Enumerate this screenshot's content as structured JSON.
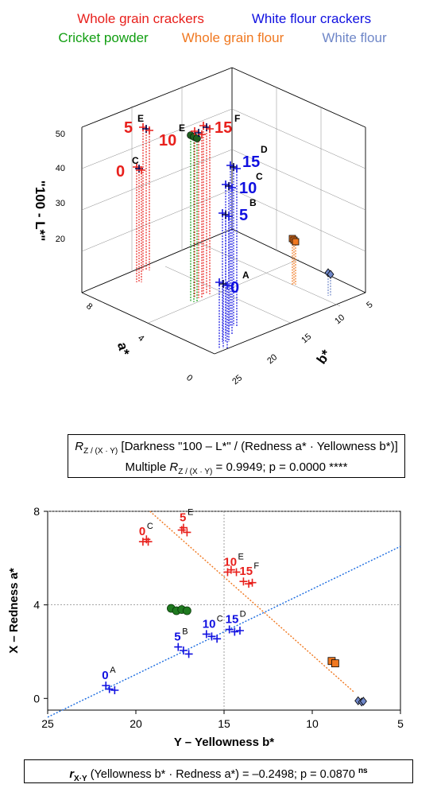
{
  "legend": [
    {
      "label": "Whole grain crackers",
      "color": "#e8201c"
    },
    {
      "label": "White flour crackers",
      "color": "#1010e0"
    },
    {
      "label": "Cricket powder",
      "color": "#119e11"
    },
    {
      "label": "Whole grain flour",
      "color": "#f07820"
    },
    {
      "label": "White flour",
      "color": "#6f87c8"
    }
  ],
  "top_chart": {
    "type": "scatter3d",
    "zlabel": "\"100 - L*\"",
    "xlabel": "a*",
    "ylabel": "b*",
    "z_ticks": [
      "50",
      "40",
      "30",
      "20"
    ],
    "a_ticks": [
      "8",
      "4",
      "0"
    ],
    "b_ticks": [
      "5",
      "10",
      "15",
      "20",
      "25"
    ],
    "point_labels": [
      {
        "text": "5",
        "color": "#e8201c"
      },
      {
        "text": "E",
        "color": "#000000"
      },
      {
        "text": "10",
        "color": "#e8201c"
      },
      {
        "text": "E",
        "color": "#000000"
      },
      {
        "text": "15",
        "color": "#e8201c"
      },
      {
        "text": "F",
        "color": "#000000"
      },
      {
        "text": "0",
        "color": "#e8201c"
      },
      {
        "text": "C",
        "color": "#000000"
      },
      {
        "text": "15",
        "color": "#1010e0"
      },
      {
        "text": "D",
        "color": "#000000"
      },
      {
        "text": "10",
        "color": "#1010e0"
      },
      {
        "text": "C",
        "color": "#000000"
      },
      {
        "text": "5",
        "color": "#1010e0"
      },
      {
        "text": "B",
        "color": "#000000"
      },
      {
        "text": "0",
        "color": "#1010e0"
      },
      {
        "text": "A",
        "color": "#000000"
      }
    ]
  },
  "model_box": {
    "line1_R": "R",
    "line1_sub": "Z / (X · Y)",
    "line1_text": " [Darkness \"100 – L*\" / (Redness a* · Yellowness b*)]",
    "line2_prefix": "Multiple ",
    "line2_R": "R",
    "line2_sub": "Z / (X · Y)",
    "line2_suffix": " = 0.9949; p = 0.0000 ****"
  },
  "chart_data": {
    "type": "scatter",
    "xlabel": "Y – Yellowness b*",
    "ylabel": "X – Redness a*",
    "xlim": [
      25,
      5
    ],
    "ylim": [
      -0.5,
      8
    ],
    "x_ticks": [
      25,
      20,
      15,
      10,
      5
    ],
    "y_ticks": [
      0,
      4,
      8
    ],
    "grid_x": [
      15
    ],
    "grid_y": [
      4,
      8
    ],
    "series": [
      {
        "name": "Whole grain crackers",
        "color": "#e8201c",
        "marker": "plus",
        "groups": [
          {
            "label": "0",
            "letter": "C",
            "points": [
              [
                19.6,
                6.7
              ],
              [
                19.4,
                6.8
              ],
              [
                19.3,
                6.7
              ]
            ]
          },
          {
            "label": "5",
            "letter": "E",
            "points": [
              [
                17.3,
                7.3
              ],
              [
                17.1,
                7.1
              ],
              [
                17.4,
                7.2
              ]
            ]
          },
          {
            "label": "10",
            "letter": "E",
            "points": [
              [
                14.8,
                5.4
              ],
              [
                14.6,
                5.5
              ],
              [
                14.3,
                5.4
              ]
            ]
          },
          {
            "label": "15",
            "letter": "F",
            "points": [
              [
                13.9,
                5.0
              ],
              [
                13.6,
                4.9
              ],
              [
                13.4,
                4.95
              ]
            ]
          }
        ]
      },
      {
        "name": "White flour crackers",
        "color": "#1010e0",
        "marker": "plus",
        "groups": [
          {
            "label": "0",
            "letter": "A",
            "points": [
              [
                21.7,
                0.55
              ],
              [
                21.5,
                0.4
              ],
              [
                21.2,
                0.35
              ]
            ]
          },
          {
            "label": "5",
            "letter": "B",
            "points": [
              [
                17.6,
                2.2
              ],
              [
                17.3,
                2.05
              ],
              [
                17.0,
                1.9
              ]
            ]
          },
          {
            "label": "10",
            "letter": "C",
            "points": [
              [
                16.0,
                2.75
              ],
              [
                15.7,
                2.65
              ],
              [
                15.4,
                2.55
              ]
            ]
          },
          {
            "label": "15",
            "letter": "D",
            "points": [
              [
                14.7,
                2.95
              ],
              [
                14.4,
                2.85
              ],
              [
                14.1,
                2.9
              ]
            ]
          }
        ]
      },
      {
        "name": "Cricket powder",
        "color": "#119e11",
        "marker": "circle",
        "groups": [
          {
            "label": "",
            "letter": "",
            "points": [
              [
                18.0,
                3.85
              ],
              [
                17.7,
                3.75
              ],
              [
                17.4,
                3.8
              ],
              [
                17.1,
                3.75
              ]
            ]
          }
        ]
      },
      {
        "name": "Whole grain flour",
        "color": "#f07820",
        "marker": "square",
        "groups": [
          {
            "label": "",
            "letter": "",
            "points": [
              [
                8.9,
                1.6
              ],
              [
                8.7,
                1.5
              ]
            ]
          }
        ]
      },
      {
        "name": "White flour",
        "color": "#6f87c8",
        "marker": "diamond",
        "groups": [
          {
            "label": "",
            "letter": "",
            "points": [
              [
                7.4,
                -0.1
              ],
              [
                7.2,
                -0.15
              ],
              [
                7.1,
                -0.12
              ]
            ]
          }
        ]
      }
    ],
    "trend_lines": [
      {
        "color": "#1a6be0",
        "from": [
          25,
          -0.8
        ],
        "to": [
          5,
          6.5
        ]
      },
      {
        "color": "#f07820",
        "from": [
          19.2,
          8.0
        ],
        "to": [
          7.6,
          0.25
        ]
      }
    ]
  },
  "corr_box": {
    "r": "r",
    "sub": "X·Y",
    "text": " (Yellowness b* · Redness a*) = –0.2498; p = 0.0870 ",
    "sup": "ns"
  }
}
